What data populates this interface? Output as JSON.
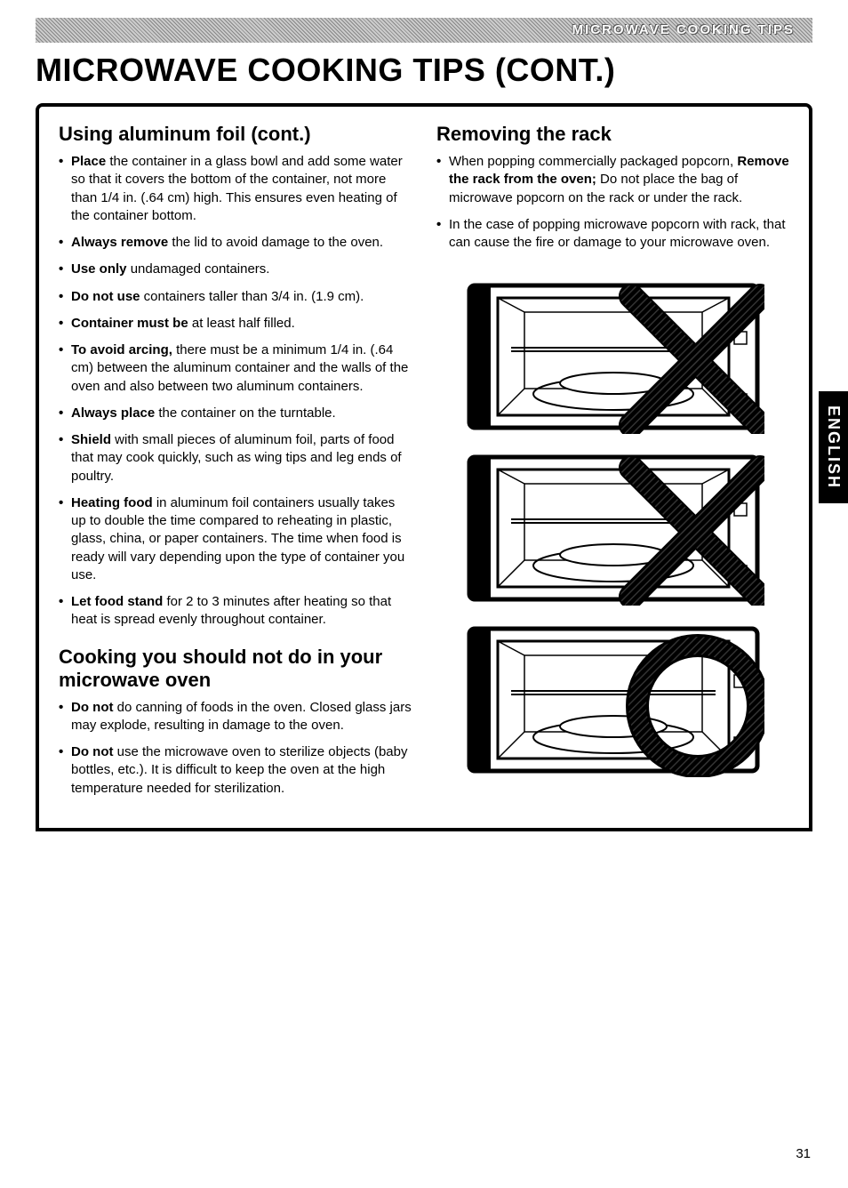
{
  "header_bar_text": "MICROWAVE COOKING TIPS",
  "main_title": "MICROWAVE COOKING TIPS (CONT.)",
  "side_tab": "ENGLISH",
  "page_number": "31",
  "left_column": {
    "section1": {
      "heading": "Using aluminum foil (cont.)",
      "items": [
        {
          "bold": "Place",
          "rest": " the container in a glass bowl and add some water so that it covers the bottom of the container, not more than 1/4 in. (.64 cm) high. This ensures even heating of the container bottom."
        },
        {
          "bold": "Always remove",
          "rest": " the lid to avoid damage to the oven."
        },
        {
          "bold": "Use only",
          "rest": " undamaged containers."
        },
        {
          "bold": "Do not use",
          "rest": " containers taller than 3/4 in. (1.9 cm)."
        },
        {
          "bold": "Container must be",
          "rest": " at least half filled."
        },
        {
          "bold": "To avoid arcing,",
          "rest": " there must be a minimum 1/4 in. (.64 cm) between the aluminum container and the walls of the oven and also between two aluminum containers."
        },
        {
          "bold": "Always place",
          "rest": " the container on the turntable."
        },
        {
          "bold": "Shield",
          "rest": " with small pieces of aluminum foil, parts of food that may cook quickly, such as wing tips and leg ends of poultry."
        },
        {
          "bold": "Heating food",
          "rest": " in aluminum foil containers usually takes up to double the time compared to reheating in plastic, glass, china, or paper containers. The time when food is ready will vary depending upon the type of container you use."
        },
        {
          "bold": "Let food stand",
          "rest": " for 2 to 3 minutes after heating so that heat is spread evenly throughout container."
        }
      ]
    },
    "section2": {
      "heading": "Cooking you should not do in your microwave oven",
      "items": [
        {
          "bold": "Do not",
          "rest": " do canning of foods in the oven. Closed glass jars may explode, resulting in damage to the oven."
        },
        {
          "bold": "Do not",
          "rest": " use the microwave oven to sterilize objects (baby bottles, etc.). It is difficult to keep the oven at the high temperature needed for sterilization."
        }
      ]
    }
  },
  "right_column": {
    "section1": {
      "heading": "Removing the rack",
      "items": [
        {
          "plain_prefix": "When popping commercially packaged popcorn, ",
          "bold": "Remove the rack from the oven;",
          "rest": " Do not place the bag of microwave popcorn on the rack or under the rack."
        },
        {
          "plain_prefix": "In the case of popping microwave popcorn with rack, that can cause the fire or damage to your microwave oven.",
          "bold": "",
          "rest": ""
        }
      ]
    },
    "diagrams": {
      "stroke_color": "#000000",
      "hatch_color": "#555555",
      "count": 3,
      "marks": [
        "x",
        "x",
        "circle"
      ]
    }
  }
}
